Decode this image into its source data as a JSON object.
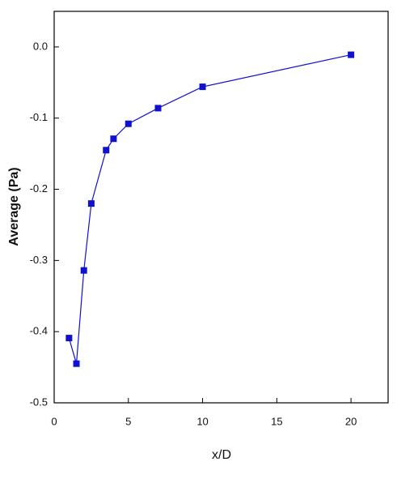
{
  "chart_data": {
    "type": "line",
    "x_label": "x/D",
    "y_label": "Average (Pa)",
    "series": [
      {
        "color": "#1010d0",
        "x": [
          1,
          1.5,
          2,
          2.5,
          3.5,
          4,
          5,
          7,
          10,
          20
        ],
        "values": [
          -0.409,
          -0.445,
          -0.314,
          -0.22,
          -0.145,
          -0.129,
          -0.108,
          -0.086,
          -0.056,
          -0.011
        ]
      }
    ],
    "xlim": [
      0,
      22.5
    ],
    "xticks": [
      0,
      5,
      10,
      15,
      20
    ],
    "ylim": [
      -0.5,
      0.05
    ],
    "yticks": [
      {
        "value": 0,
        "label": "0.0"
      },
      -0.1,
      -0.2,
      -0.3,
      -0.4,
      -0.5
    ]
  }
}
